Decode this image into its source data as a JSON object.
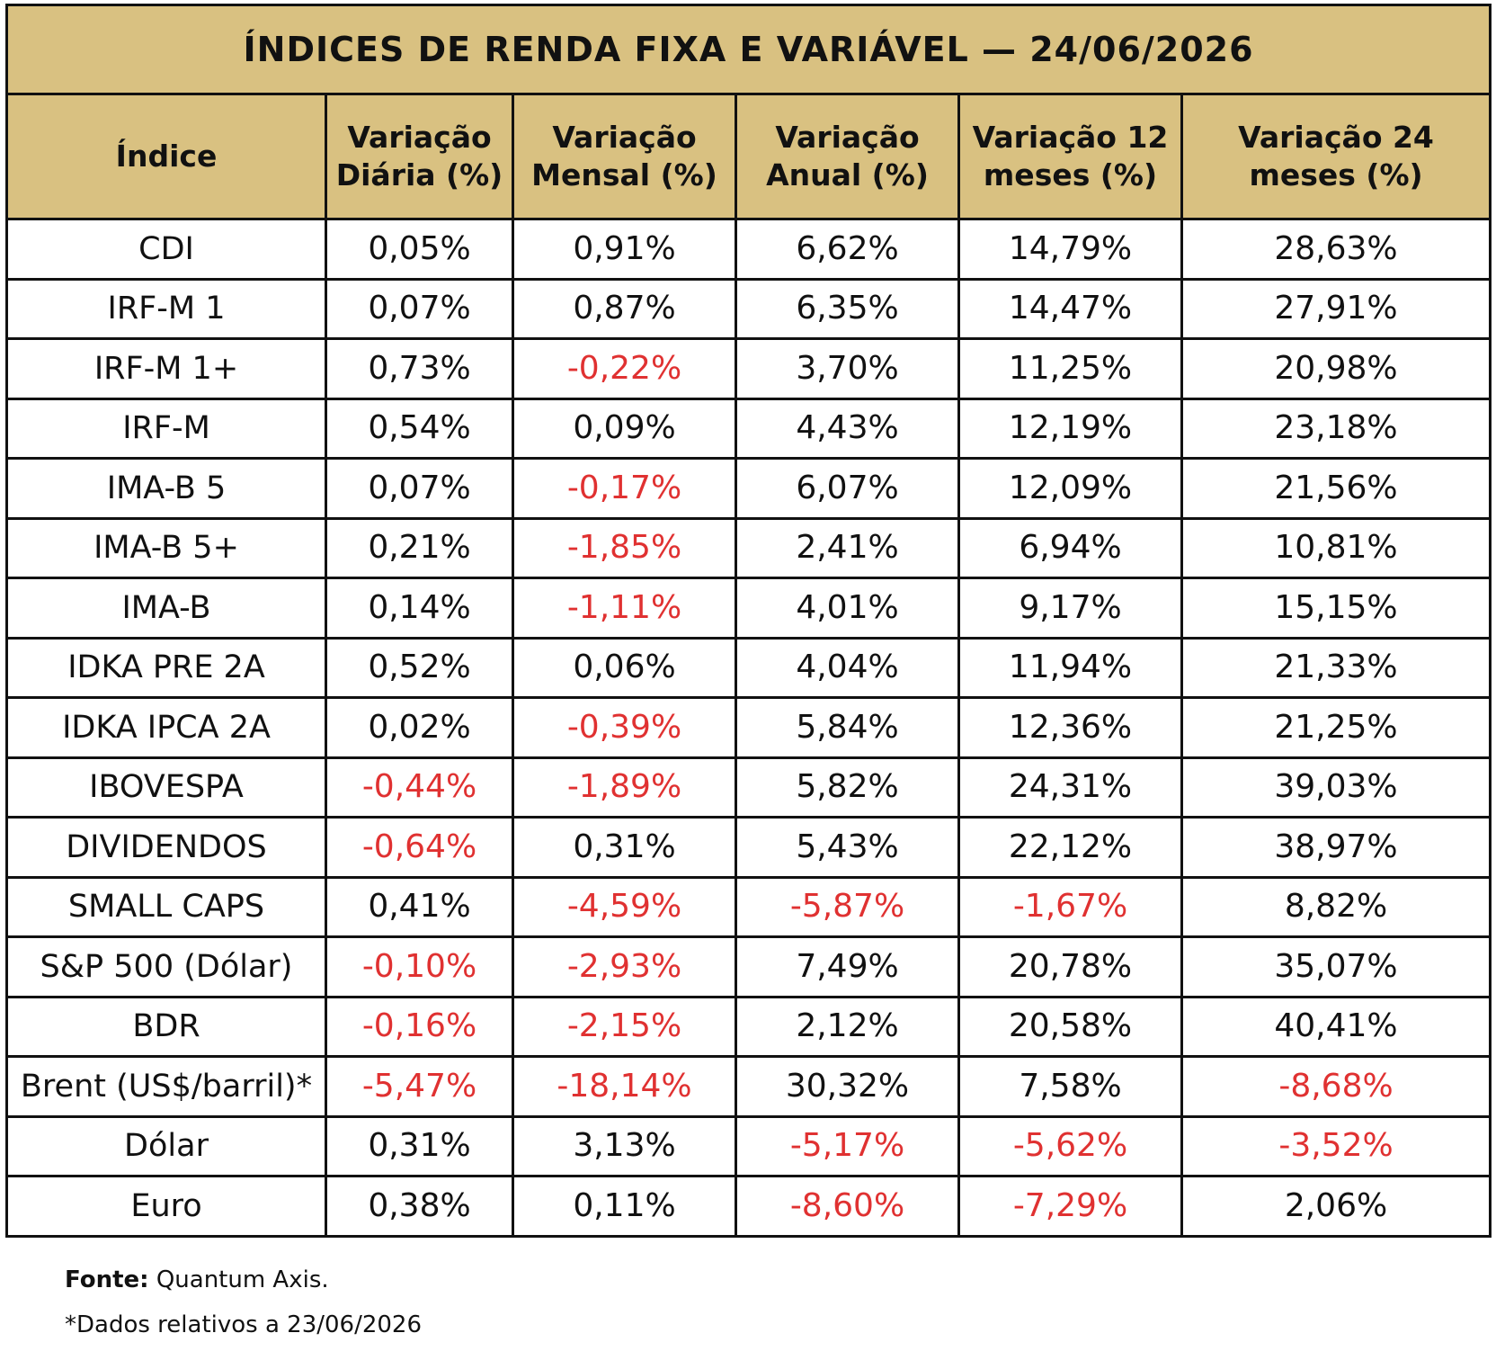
{
  "title": "ÍNDICES DE RENDA FIXA E VARIÁVEL — 24/06/2026",
  "headers": [
    "Índice",
    "Variação Diária (%)",
    "Variação Mensal (%)",
    "Variação Anual (%)",
    "Variação 12 meses (%)",
    "Variação 24 meses (%)"
  ],
  "rows": [
    [
      "CDI",
      "0,05%",
      "0,91%",
      "6,62%",
      "14,79%",
      "28,63%"
    ],
    [
      "IRF-M 1",
      "0,07%",
      "0,87%",
      "6,35%",
      "14,47%",
      "27,91%"
    ],
    [
      "IRF-M 1+",
      "0,73%",
      "-0,22%",
      "3,70%",
      "11,25%",
      "20,98%"
    ],
    [
      "IRF-M",
      "0,54%",
      "0,09%",
      "4,43%",
      "12,19%",
      "23,18%"
    ],
    [
      "IMA-B 5",
      "0,07%",
      "-0,17%",
      "6,07%",
      "12,09%",
      "21,56%"
    ],
    [
      "IMA-B 5+",
      "0,21%",
      "-1,85%",
      "2,41%",
      "6,94%",
      "10,81%"
    ],
    [
      "IMA-B",
      "0,14%",
      "-1,11%",
      "4,01%",
      "9,17%",
      "15,15%"
    ],
    [
      "IDKA PRE 2A",
      "0,52%",
      "0,06%",
      "4,04%",
      "11,94%",
      "21,33%"
    ],
    [
      "IDKA IPCA 2A",
      "0,02%",
      "-0,39%",
      "5,84%",
      "12,36%",
      "21,25%"
    ],
    [
      "IBOVESPA",
      "-0,44%",
      "-1,89%",
      "5,82%",
      "24,31%",
      "39,03%"
    ],
    [
      "DIVIDENDOS",
      "-0,64%",
      "0,31%",
      "5,43%",
      "22,12%",
      "38,97%"
    ],
    [
      "SMALL CAPS",
      "0,41%",
      "-4,59%",
      "-5,87%",
      "-1,67%",
      "8,82%"
    ],
    [
      "S&P 500 (Dólar)",
      "-0,10%",
      "-2,93%",
      "7,49%",
      "20,78%",
      "35,07%"
    ],
    [
      "BDR",
      "-0,16%",
      "-2,15%",
      "2,12%",
      "20,58%",
      "40,41%"
    ],
    [
      "Brent (US$/barril)*",
      "-5,47%",
      "-18,14%",
      "30,32%",
      "7,58%",
      "-8,68%"
    ],
    [
      "Dólar",
      "0,31%",
      "3,13%",
      "-5,17%",
      "-5,62%",
      "-3,52%"
    ],
    [
      "Euro",
      "0,38%",
      "0,11%",
      "-8,60%",
      "-7,29%",
      "2,06%"
    ]
  ],
  "footer": {
    "source_label": "Fonte:",
    "source_value": "Quantum Axis.",
    "note": "*Dados relativos a 23/06/2026"
  },
  "colors": {
    "header_bg": "#d9c181",
    "negative": "#e03131",
    "border": "#111111"
  }
}
